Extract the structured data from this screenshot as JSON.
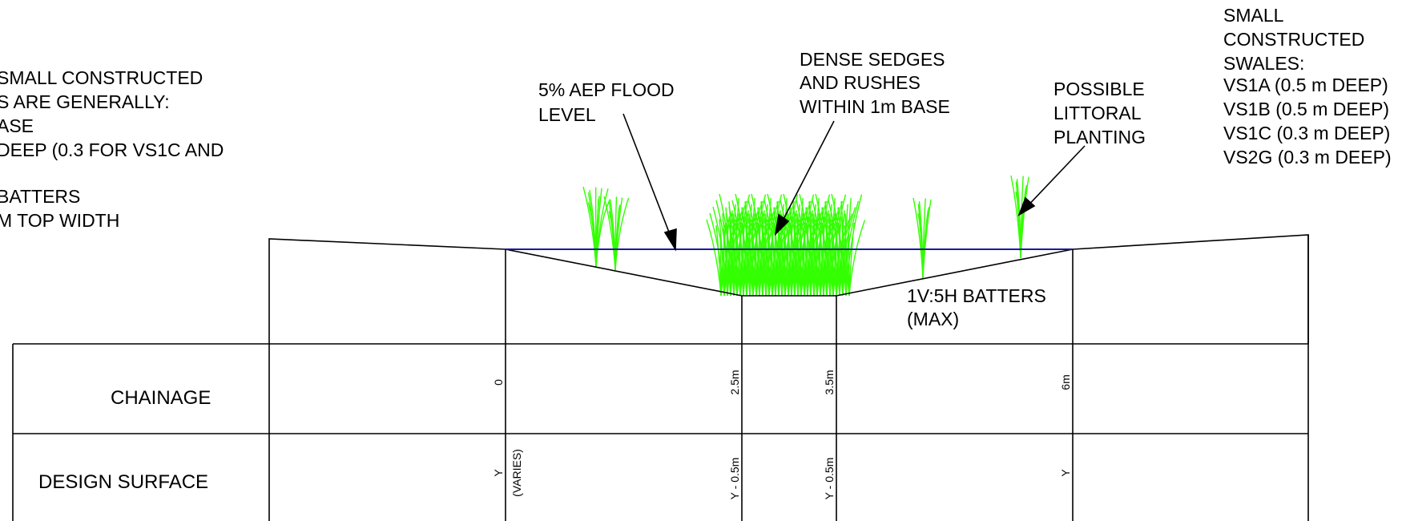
{
  "notes_left": {
    "lines": [
      "SMALL CONSTRUCTED",
      "S ARE GENERALLY:",
      "ASE",
      "DEEP (0.3 FOR VS1C AND",
      "",
      "BATTERS",
      "M TOP WIDTH"
    ]
  },
  "callouts": {
    "flood_level": [
      "5% AEP FLOOD",
      "LEVEL"
    ],
    "sedges": [
      "DENSE SEDGES",
      "AND RUSHES",
      "WITHIN 1m BASE"
    ],
    "littoral": [
      "POSSIBLE",
      "LITTORAL",
      "PLANTING"
    ],
    "batters": [
      "1V:5H BATTERS",
      "(MAX)"
    ]
  },
  "notes_right": {
    "lines": [
      "SMALL",
      "CONSTRUCTED",
      "SWALES:",
      "VS1A (0.5 m DEEP)",
      "VS1B (0.5 m DEEP)",
      "VS1C (0.3 m DEEP)",
      "VS2G (0.3 m DEEP)"
    ]
  },
  "table": {
    "row_labels": [
      "CHAINAGE",
      "DESIGN SURFACE"
    ],
    "chainage": [
      "0",
      "2.5m",
      "3.5m",
      "6m"
    ],
    "design_surface": [
      "Y",
      "(VARIES)",
      "Y - 0.5m",
      "Y - 0.5m",
      "Y"
    ]
  },
  "colors": {
    "water_line": "#1a1aa0",
    "vegetation": "#33ff00",
    "linework": "#000000"
  }
}
